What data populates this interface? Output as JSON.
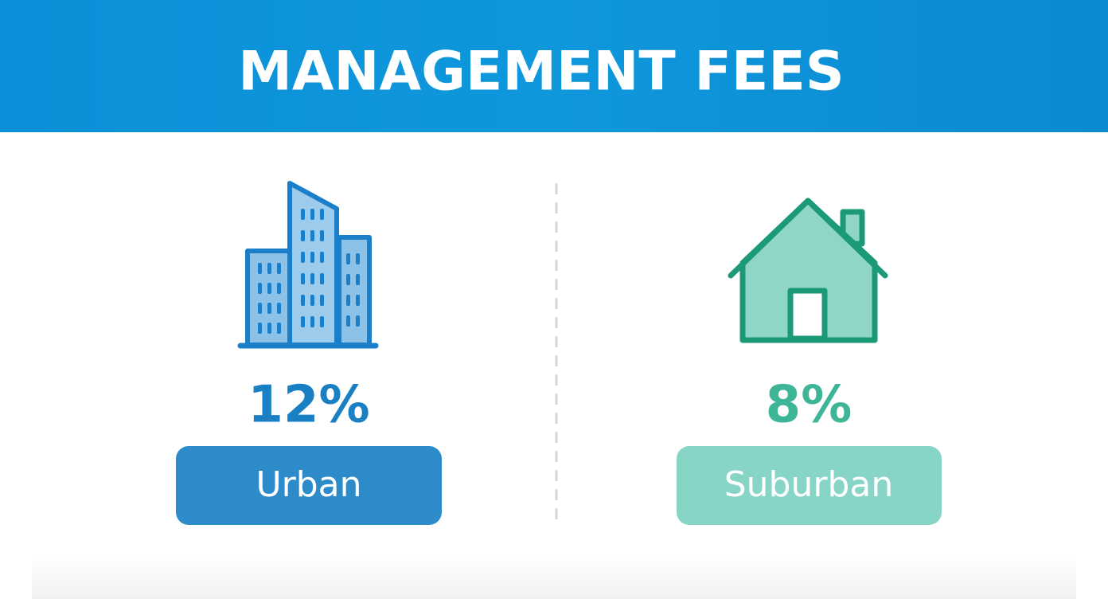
{
  "header": {
    "title": "MANAGEMENT FEES"
  },
  "items": [
    {
      "value": "12%",
      "label": "Urban"
    },
    {
      "value": "8%",
      "label": "Suburban"
    }
  ]
}
